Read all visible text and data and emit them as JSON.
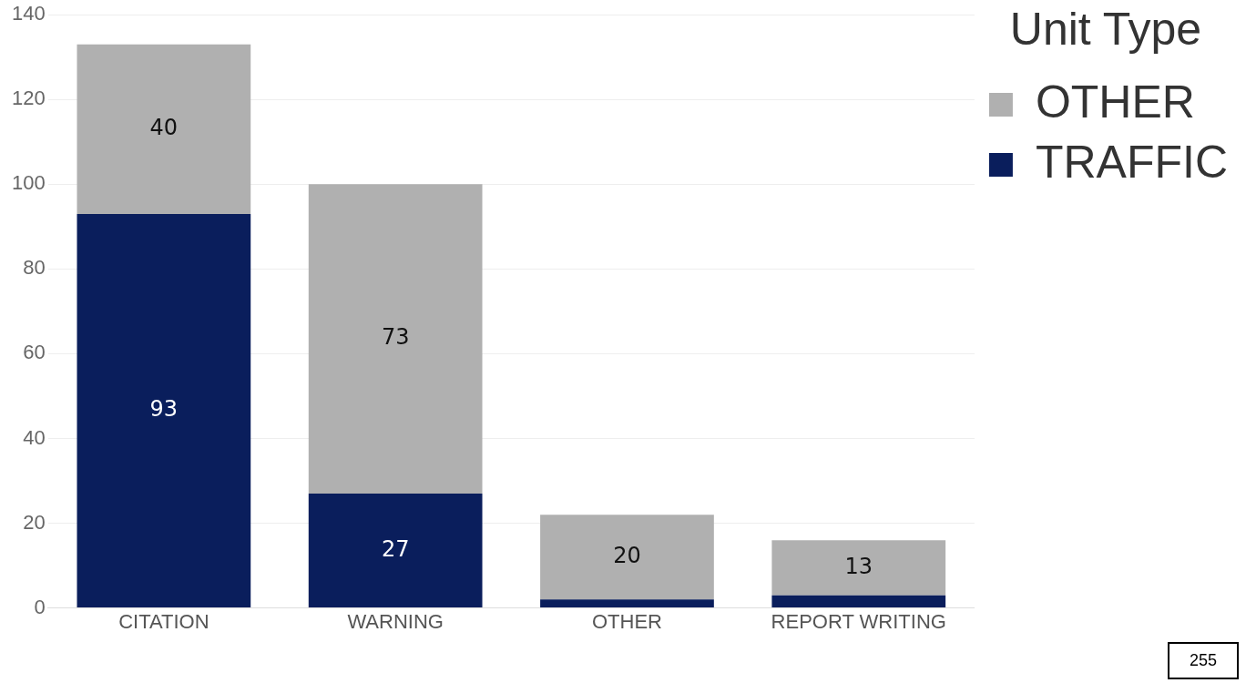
{
  "chart_data": {
    "type": "bar",
    "stacked": true,
    "categories": [
      "CITATION",
      "WARNING",
      "OTHER",
      "REPORT WRITING"
    ],
    "series": [
      {
        "name": "TRAFFIC",
        "color": "#0a1e5c",
        "values": [
          93,
          27,
          2,
          3
        ],
        "value_labels": [
          "93",
          "27",
          null,
          null
        ]
      },
      {
        "name": "OTHER",
        "color": "#b0b0b0",
        "values": [
          40,
          73,
          20,
          13
        ],
        "value_labels": [
          "40",
          "73",
          "20",
          "13"
        ]
      }
    ],
    "ylim": [
      0,
      140
    ],
    "yticks": [
      0,
      20,
      40,
      60,
      80,
      100,
      120,
      140
    ],
    "grid": "y",
    "legend": "top right",
    "legend_title": "Unit Type",
    "annotations": [
      "255"
    ]
  }
}
